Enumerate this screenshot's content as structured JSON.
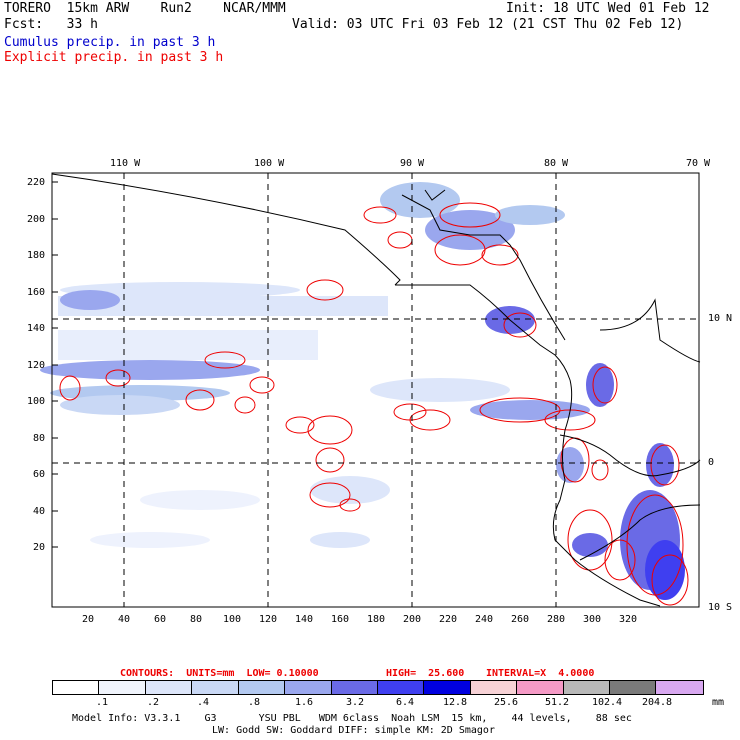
{
  "header": {
    "model": "TORERO  15km ARW    Run2    NCAR/MMM",
    "init": "Init: 18 UTC Wed 01 Feb 12",
    "fcst": "Fcst:   33 h",
    "valid": "Valid: 03 UTC Fri 03 Feb 12 (21 CST Thu 02 Feb 12)",
    "cumulus": "Cumulus precip. in past 3 h",
    "explicit": "Explicit precip. in past 3 h"
  },
  "map": {
    "top_lon_labels": [
      "110 W",
      "100 W",
      "90 W",
      "80 W",
      "70 W"
    ],
    "right_lat_labels": [
      "10 N",
      "0",
      "10 S"
    ],
    "left_y_ticks": [
      "220",
      "200",
      "180",
      "160",
      "140",
      "120",
      "100",
      "80",
      "60",
      "40",
      "20"
    ],
    "bottom_x_ticks": [
      "20",
      "40",
      "60",
      "80",
      "100",
      "120",
      "140",
      "160",
      "180",
      "200",
      "220",
      "240",
      "260",
      "280",
      "300",
      "320"
    ]
  },
  "contour_info": {
    "label": "CONTOURS:  UNITS=mm  LOW= 0.10000",
    "high": "HIGH=  25.600",
    "interval": "INTERVAL=X  4.0000"
  },
  "colorbar": {
    "labels": [
      ".1",
      ".2",
      ".4",
      ".8",
      "1.6",
      "3.2",
      "6.4",
      "12.8",
      "25.6",
      "51.2",
      "102.4",
      "204.8"
    ],
    "unit": "mm",
    "colors": [
      "#ffffff",
      "#f0f4fc",
      "#dde6fa",
      "#c9d8f5",
      "#b3c9f0",
      "#9aa7ee",
      "#6a6ae6",
      "#3f3ff0",
      "#0000e0",
      "#f7d2d6",
      "#f59ac6",
      "#b8b8b8",
      "#7a7a7a",
      "#d8a8f0"
    ]
  },
  "footer": {
    "line1": "Model Info: V3.3.1    G3       YSU PBL   WDM 6class  Noah LSM  15 km,    44 levels,    88 sec",
    "line2": "LW: Godd SW: Goddard DIFF: simple KM: 2D Smagor"
  }
}
